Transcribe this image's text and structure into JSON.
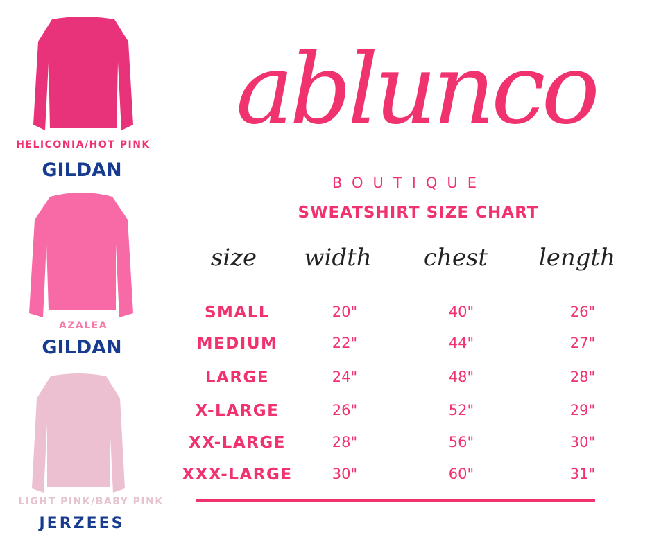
{
  "colors": {
    "accent": "#f0326f",
    "hot_pink": "#e8337b",
    "azalea": "#f76aa6",
    "light_pink": "#ecbfd1",
    "gildan_blue": "#173c8f",
    "jerzees_red": "#d63a2a"
  },
  "logo": {
    "text": "ablunco"
  },
  "boutique": "BOUTIQUE",
  "title": "SWEATSHIRT SIZE CHART",
  "products": [
    {
      "color_name": "HELICONIA/HOT PINK",
      "brand": "GILDAN",
      "label_color": "#f0326f",
      "shirt_color": "#e8337b"
    },
    {
      "color_name": "AZALEA",
      "brand": "GILDAN",
      "label_color": "#f77aa8",
      "shirt_color": "#f76aa6"
    },
    {
      "color_name": "LIGHT PINK/BABY PINK",
      "brand": "JERZEES",
      "label_color": "#e6c3d0",
      "shirt_color": "#ecbfd1"
    }
  ],
  "table": {
    "headers": [
      "size",
      "width",
      "chest",
      "length"
    ],
    "rows": [
      [
        "SMALL",
        "20\"",
        "40\"",
        "26\""
      ],
      [
        "MEDIUM",
        "22\"",
        "44\"",
        "27\""
      ],
      [
        "LARGE",
        "24\"",
        "48\"",
        "28\""
      ],
      [
        "X-LARGE",
        "26\"",
        "52\"",
        "29\""
      ],
      [
        "XX-LARGE",
        "28\"",
        "56\"",
        "30\""
      ],
      [
        "XXX-LARGE",
        "30\"",
        "60\"",
        "31\""
      ]
    ]
  }
}
